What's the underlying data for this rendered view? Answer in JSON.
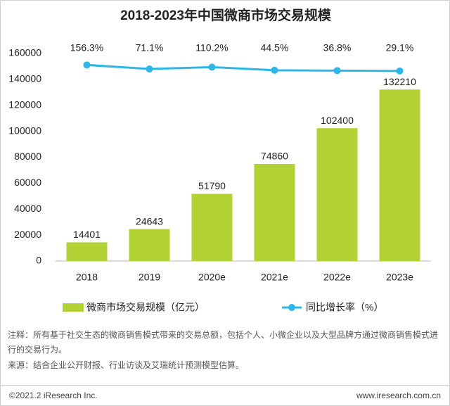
{
  "chart_data": {
    "type": "bar",
    "title": "2018-2023年中国微商市场交易规模",
    "categories": [
      "2018",
      "2019",
      "2020e",
      "2021e",
      "2022e",
      "2023e"
    ],
    "series": [
      {
        "name": "微商市场交易规模（亿元）",
        "type": "bar",
        "color": "#b2d235",
        "values": [
          14401,
          24643,
          51790,
          74860,
          102400,
          132210
        ]
      },
      {
        "name": "同比增长率（%）",
        "type": "line",
        "axis": "y2",
        "color": "#2db7e8",
        "values": [
          156.3,
          71.1,
          110.2,
          44.5,
          36.8,
          29.1
        ],
        "value_labels": [
          "156.3%",
          "71.1%",
          "110.2%",
          "44.5%",
          "36.8%",
          "29.1%"
        ]
      }
    ],
    "ylim": [
      0,
      160000
    ],
    "yticks": [
      0,
      20000,
      40000,
      60000,
      80000,
      100000,
      120000,
      140000,
      160000
    ],
    "y2lim": [
      -4000,
      400
    ],
    "grid": false
  },
  "notes": [
    "注释：所有基于社交生态的微商销售模式带来的交易总额，包括个人、小微企业以及大型品牌方通过微商销售模式进行的交易行为。",
    "来源：结合企业公开财报、行业访谈及艾瑞统计预测模型估算。"
  ],
  "footer": {
    "copyright": "©2021.2 iResearch Inc.",
    "website": "www.iresearch.com.cn"
  }
}
